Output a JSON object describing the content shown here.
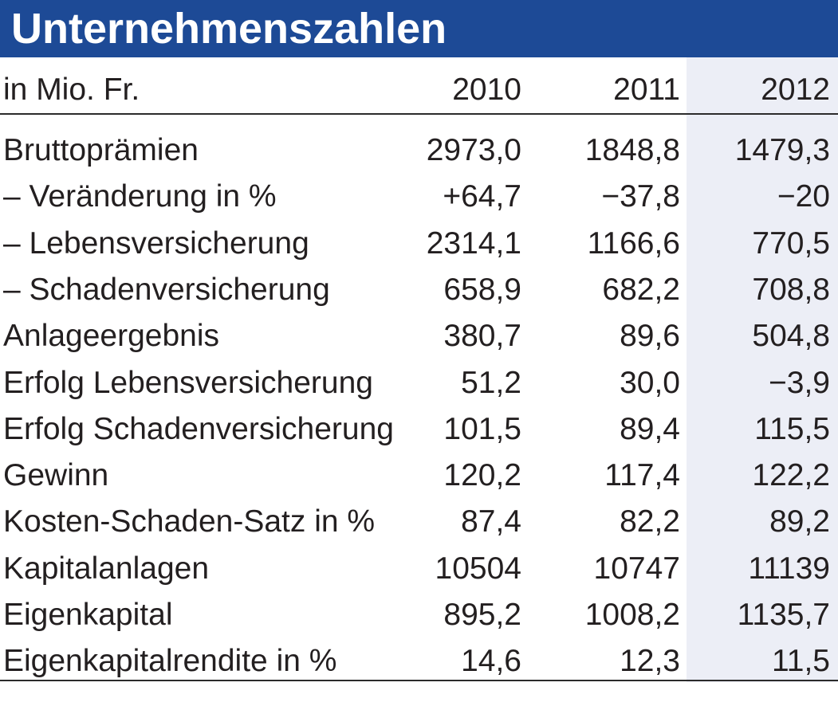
{
  "title": "Unternehmenszahlen",
  "header": {
    "unit": "in Mio. Fr.",
    "years": [
      "2010",
      "2011",
      "2012"
    ]
  },
  "rows": [
    {
      "label": "Bruttoprämien",
      "values": [
        "2973,0",
        "1848,8",
        "1479,3"
      ]
    },
    {
      "label": "– Veränderung in %",
      "values": [
        "+64,7",
        "−37,8",
        "−20"
      ]
    },
    {
      "label": "– Lebensversicherung",
      "values": [
        "2314,1",
        "1166,6",
        "770,5"
      ]
    },
    {
      "label": "– Schadenversicherung",
      "values": [
        "658,9",
        "682,2",
        "708,8"
      ]
    },
    {
      "label": "Anlageergebnis",
      "values": [
        "380,7",
        "89,6",
        "504,8"
      ]
    },
    {
      "label": "Erfolg Lebensversicherung",
      "values": [
        "51,2",
        "30,0",
        "−3,9"
      ]
    },
    {
      "label": "Erfolg Schadenversicherung",
      "values": [
        "101,5",
        "89,4",
        "115,5"
      ]
    },
    {
      "label": "Gewinn",
      "values": [
        "120,2",
        "117,4",
        "122,2"
      ]
    },
    {
      "label": "Kosten-Schaden-Satz in %",
      "values": [
        "87,4",
        "82,2",
        "89,2"
      ]
    },
    {
      "label": "Kapitalanlagen",
      "values": [
        "10504",
        "10747",
        "11139"
      ]
    },
    {
      "label": "Eigenkapital",
      "values": [
        "895,2",
        "1008,2",
        "1135,7"
      ]
    },
    {
      "label": "Eigenkapitalrendite in %",
      "values": [
        "14,6",
        "12,3",
        "11,5"
      ]
    }
  ],
  "colors": {
    "title_bar": "#1d4a96",
    "title_text": "#ffffff",
    "highlight_column": "#eceef6",
    "text": "#231f20"
  }
}
